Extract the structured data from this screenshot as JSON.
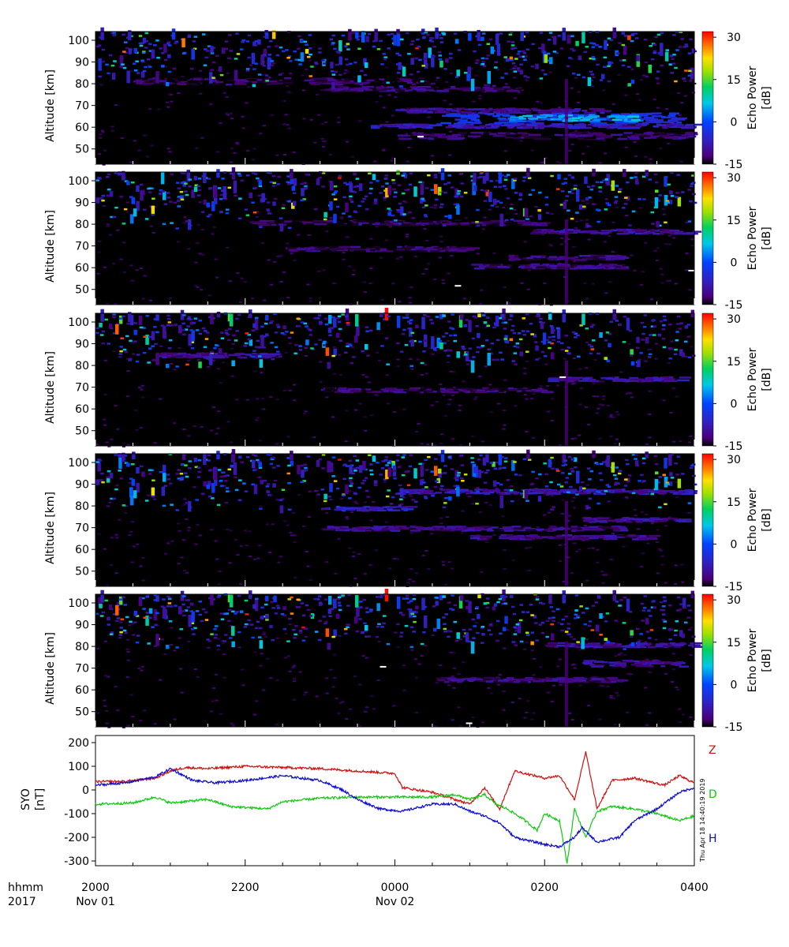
{
  "chart_data": [
    {
      "type": "heatmap",
      "panel": 1,
      "ylabel": "Altitude [km]",
      "yticks": [
        50,
        60,
        70,
        80,
        90,
        100
      ],
      "ylim": [
        43,
        104
      ],
      "colorbar_label": [
        "Echo Power",
        "[dB]"
      ],
      "colorbar_ticks": [
        30,
        15,
        0,
        -15
      ],
      "colorbar_range": [
        -15,
        32
      ],
      "layers": [
        {
          "alt": [
            55,
            58
          ],
          "t": [
            4.0,
            8.0
          ],
          "db": -12
        },
        {
          "alt": [
            60,
            62
          ],
          "t": [
            3.6,
            8.0
          ],
          "db": -8
        },
        {
          "alt": [
            62,
            67
          ],
          "t": [
            4.6,
            7.8
          ],
          "db": -4
        },
        {
          "alt": [
            63,
            66
          ],
          "t": [
            5.5,
            7.2
          ],
          "db": 4
        },
        {
          "alt": [
            67,
            69
          ],
          "t": [
            4.0,
            6.8
          ],
          "db": -10
        },
        {
          "alt": [
            77,
            79
          ],
          "t": [
            3.0,
            5.5
          ],
          "db": -12
        },
        {
          "alt": [
            80,
            83
          ],
          "t": [
            0.5,
            4.5
          ],
          "db": -13
        }
      ],
      "flags": [
        {
          "t": 4.3,
          "alt": 56
        }
      ]
    },
    {
      "type": "heatmap",
      "panel": 2,
      "ylabel": "Altitude [km]",
      "yticks": [
        50,
        60,
        70,
        80,
        90,
        100
      ],
      "ylim": [
        43,
        104
      ],
      "colorbar_label": [
        "Echo Power",
        "[dB]"
      ],
      "colorbar_ticks": [
        30,
        15,
        0,
        -15
      ],
      "colorbar_range": [
        -15,
        32
      ],
      "layers": [
        {
          "alt": [
            60,
            62
          ],
          "t": [
            5.0,
            7.0
          ],
          "db": -11
        },
        {
          "alt": [
            64,
            66
          ],
          "t": [
            5.5,
            7.0
          ],
          "db": -11
        },
        {
          "alt": [
            68,
            70
          ],
          "t": [
            2.5,
            5.0
          ],
          "db": -12
        },
        {
          "alt": [
            76,
            78
          ],
          "t": [
            5.8,
            8.0
          ],
          "db": -10
        },
        {
          "alt": [
            80,
            82
          ],
          "t": [
            2.0,
            6.0
          ],
          "db": -13
        }
      ],
      "flags": [
        {
          "t": 4.8,
          "alt": 52
        },
        {
          "t": 7.92,
          "alt": 59
        }
      ]
    },
    {
      "type": "heatmap",
      "panel": 3,
      "ylabel": "Altitude [km]",
      "yticks": [
        50,
        60,
        70,
        80,
        90,
        100
      ],
      "ylim": [
        43,
        104
      ],
      "colorbar_label": [
        "Echo Power",
        "[dB]"
      ],
      "colorbar_ticks": [
        30,
        15,
        0,
        -15
      ],
      "colorbar_range": [
        -15,
        32
      ],
      "layers": [
        {
          "alt": [
            68,
            70
          ],
          "t": [
            3.0,
            6.0
          ],
          "db": -12
        },
        {
          "alt": [
            73,
            75
          ],
          "t": [
            6.0,
            7.8
          ],
          "db": -10
        },
        {
          "alt": [
            84,
            86
          ],
          "t": [
            0.8,
            2.5
          ],
          "db": -10
        }
      ],
      "flags": [
        {
          "t": 6.2,
          "alt": 75
        }
      ]
    },
    {
      "type": "heatmap",
      "panel": 4,
      "ylabel": "Altitude [km]",
      "yticks": [
        50,
        60,
        70,
        80,
        90,
        100
      ],
      "ylim": [
        43,
        104
      ],
      "colorbar_label": [
        "Echo Power",
        "[dB]"
      ],
      "colorbar_ticks": [
        30,
        15,
        0,
        -15
      ],
      "colorbar_range": [
        -15,
        32
      ],
      "layers": [
        {
          "alt": [
            65,
            67
          ],
          "t": [
            5.0,
            7.4
          ],
          "db": -11
        },
        {
          "alt": [
            69,
            71
          ],
          "t": [
            3.0,
            7.0
          ],
          "db": -11
        },
        {
          "alt": [
            73,
            75
          ],
          "t": [
            6.5,
            7.8
          ],
          "db": -10
        },
        {
          "alt": [
            78,
            80
          ],
          "t": [
            3.0,
            4.2
          ],
          "db": -7
        },
        {
          "alt": [
            86,
            88
          ],
          "t": [
            4.0,
            8.0
          ],
          "db": -9
        }
      ],
      "flags": []
    },
    {
      "type": "heatmap",
      "panel": 5,
      "ylabel": "Altitude [km]",
      "yticks": [
        50,
        60,
        70,
        80,
        90,
        100
      ],
      "ylim": [
        43,
        104
      ],
      "colorbar_label": [
        "Echo Power",
        "[dB]"
      ],
      "colorbar_ticks": [
        30,
        15,
        0,
        -15
      ],
      "colorbar_range": [
        -15,
        32
      ],
      "layers": [
        {
          "alt": [
            64,
            66
          ],
          "t": [
            4.5,
            7.0
          ],
          "db": -11
        },
        {
          "alt": [
            71,
            74
          ],
          "t": [
            6.5,
            7.8
          ],
          "db": -10
        },
        {
          "alt": [
            80,
            82
          ],
          "t": [
            6.0,
            8.0
          ],
          "db": -10
        }
      ],
      "flags": [
        {
          "t": 4.95,
          "alt": 45
        },
        {
          "t": 3.8,
          "alt": 71
        }
      ]
    },
    {
      "type": "line",
      "panel": 6,
      "ylabel": [
        "SYO",
        "[nT]"
      ],
      "yticks": [
        200,
        100,
        0,
        -100,
        -200,
        -300
      ],
      "ylim": [
        -320,
        230
      ],
      "series": [
        {
          "name": "Z",
          "color": "#d01010",
          "points": [
            [
              0,
              35
            ],
            [
              0.4,
              36
            ],
            [
              0.8,
              50
            ],
            [
              1.0,
              80
            ],
            [
              1.2,
              95
            ],
            [
              1.5,
              90
            ],
            [
              2.0,
              100
            ],
            [
              2.5,
              95
            ],
            [
              3.0,
              90
            ],
            [
              3.5,
              80
            ],
            [
              4.0,
              70
            ],
            [
              4.1,
              10
            ],
            [
              4.5,
              -10
            ],
            [
              4.8,
              -40
            ],
            [
              5.0,
              -60
            ],
            [
              5.2,
              10
            ],
            [
              5.35,
              -60
            ],
            [
              5.4,
              -80
            ],
            [
              5.6,
              80
            ],
            [
              6.0,
              50
            ],
            [
              6.2,
              60
            ],
            [
              6.4,
              -40
            ],
            [
              6.55,
              160
            ],
            [
              6.7,
              -80
            ],
            [
              6.9,
              40
            ],
            [
              7.2,
              50
            ],
            [
              7.6,
              20
            ],
            [
              7.8,
              60
            ],
            [
              8.0,
              30
            ]
          ]
        },
        {
          "name": "D",
          "color": "#10c810",
          "points": [
            [
              0,
              -60
            ],
            [
              0.5,
              -55
            ],
            [
              0.8,
              -30
            ],
            [
              1.0,
              -55
            ],
            [
              1.5,
              -40
            ],
            [
              1.8,
              -70
            ],
            [
              2.3,
              -80
            ],
            [
              2.5,
              -50
            ],
            [
              3.0,
              -35
            ],
            [
              3.5,
              -30
            ],
            [
              4.0,
              -30
            ],
            [
              4.5,
              -30
            ],
            [
              4.8,
              -20
            ],
            [
              5.0,
              -40
            ],
            [
              5.2,
              -20
            ],
            [
              5.35,
              -60
            ],
            [
              5.5,
              -80
            ],
            [
              5.7,
              -120
            ],
            [
              5.9,
              -170
            ],
            [
              6.0,
              -100
            ],
            [
              6.2,
              -130
            ],
            [
              6.3,
              -310
            ],
            [
              6.4,
              -80
            ],
            [
              6.55,
              -200
            ],
            [
              6.7,
              -90
            ],
            [
              6.9,
              -70
            ],
            [
              7.2,
              -80
            ],
            [
              7.5,
              -100
            ],
            [
              7.8,
              -130
            ],
            [
              8.0,
              -110
            ]
          ]
        },
        {
          "name": "H",
          "color": "#0a0ad0",
          "points": [
            [
              0,
              20
            ],
            [
              0.4,
              30
            ],
            [
              0.8,
              55
            ],
            [
              1.0,
              90
            ],
            [
              1.3,
              40
            ],
            [
              1.6,
              30
            ],
            [
              2.0,
              40
            ],
            [
              2.5,
              60
            ],
            [
              3.0,
              40
            ],
            [
              3.3,
              0
            ],
            [
              3.5,
              -40
            ],
            [
              3.8,
              -80
            ],
            [
              4.1,
              -90
            ],
            [
              4.5,
              -60
            ],
            [
              4.8,
              -60
            ],
            [
              5.0,
              -90
            ],
            [
              5.2,
              -110
            ],
            [
              5.4,
              -140
            ],
            [
              5.6,
              -200
            ],
            [
              6.0,
              -230
            ],
            [
              6.2,
              -240
            ],
            [
              6.4,
              -200
            ],
            [
              6.5,
              -160
            ],
            [
              6.7,
              -220
            ],
            [
              7.0,
              -200
            ],
            [
              7.2,
              -130
            ],
            [
              7.5,
              -80
            ],
            [
              7.8,
              -10
            ],
            [
              8.0,
              10
            ]
          ]
        }
      ]
    }
  ],
  "x_axis": {
    "row_label_1": "hhmm",
    "row_label_2": "2017",
    "ticks": [
      {
        "t": 0,
        "time": "2000",
        "date": "Nov 01"
      },
      {
        "t": 2,
        "time": "2200",
        "date": ""
      },
      {
        "t": 4,
        "time": "0000",
        "date": "Nov 02"
      },
      {
        "t": 6,
        "time": "0200",
        "date": ""
      },
      {
        "t": 8,
        "time": "0400",
        "date": ""
      }
    ],
    "range_hours": [
      0,
      8
    ]
  },
  "timestamp": "Thu Apr 18 14:40:19 2019"
}
